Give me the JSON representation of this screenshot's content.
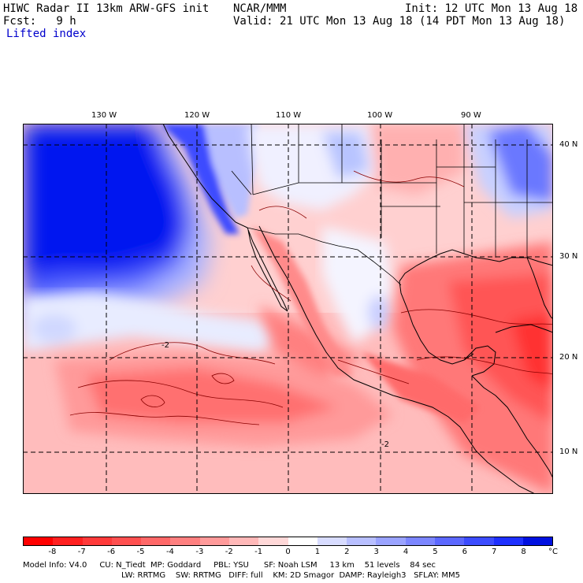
{
  "header": {
    "left_line1": "HIWC Radar II 13km ARW-GFS init",
    "left_line2": "Fcst:   9 h",
    "left_line3": "Lifted index",
    "center_line1": "NCAR/MMM",
    "right_line1": "Init: 12 UTC Mon 13 Aug 18",
    "right_line2": "Valid: 21 UTC Mon 13 Aug 18 (14 PDT Mon 13 Aug 18)"
  },
  "map": {
    "longitude_labels": [
      "130 W",
      "120 W",
      "110 W",
      "100 W",
      "90 W"
    ],
    "latitude_labels": [
      "40 N",
      "30 N",
      "20 N",
      "10 N"
    ],
    "contour_label": "-2"
  },
  "colorbar": {
    "labels": [
      "-8",
      "-7",
      "-6",
      "-5",
      "-4",
      "-3",
      "-2",
      "-1",
      "0",
      "1",
      "2",
      "3",
      "4",
      "5",
      "6",
      "7",
      "8"
    ],
    "unit": "°C",
    "colors": [
      "#ff0000",
      "#ff2020",
      "#ff3a3a",
      "#ff5050",
      "#ff6868",
      "#ff8080",
      "#ff9a9a",
      "#ffb8b8",
      "#ffd8d8",
      "#ffffff",
      "#d8dcff",
      "#b8bfff",
      "#9aa3ff",
      "#7c86ff",
      "#5c68ff",
      "#3c4cff",
      "#1e30ff",
      "#0010e0"
    ]
  },
  "footer": {
    "line1": "Model Info: V4.0     CU: N_Tiedt  MP: Goddard     PBL: YSU      SF: Noah LSM     13 km    51 levels    84 sec",
    "line2": "LW: RRTMG    SW: RRTMG   DIFF: full    KM: 2D Smagor  DAMP: Rayleigh3   SFLAY: MM5"
  }
}
